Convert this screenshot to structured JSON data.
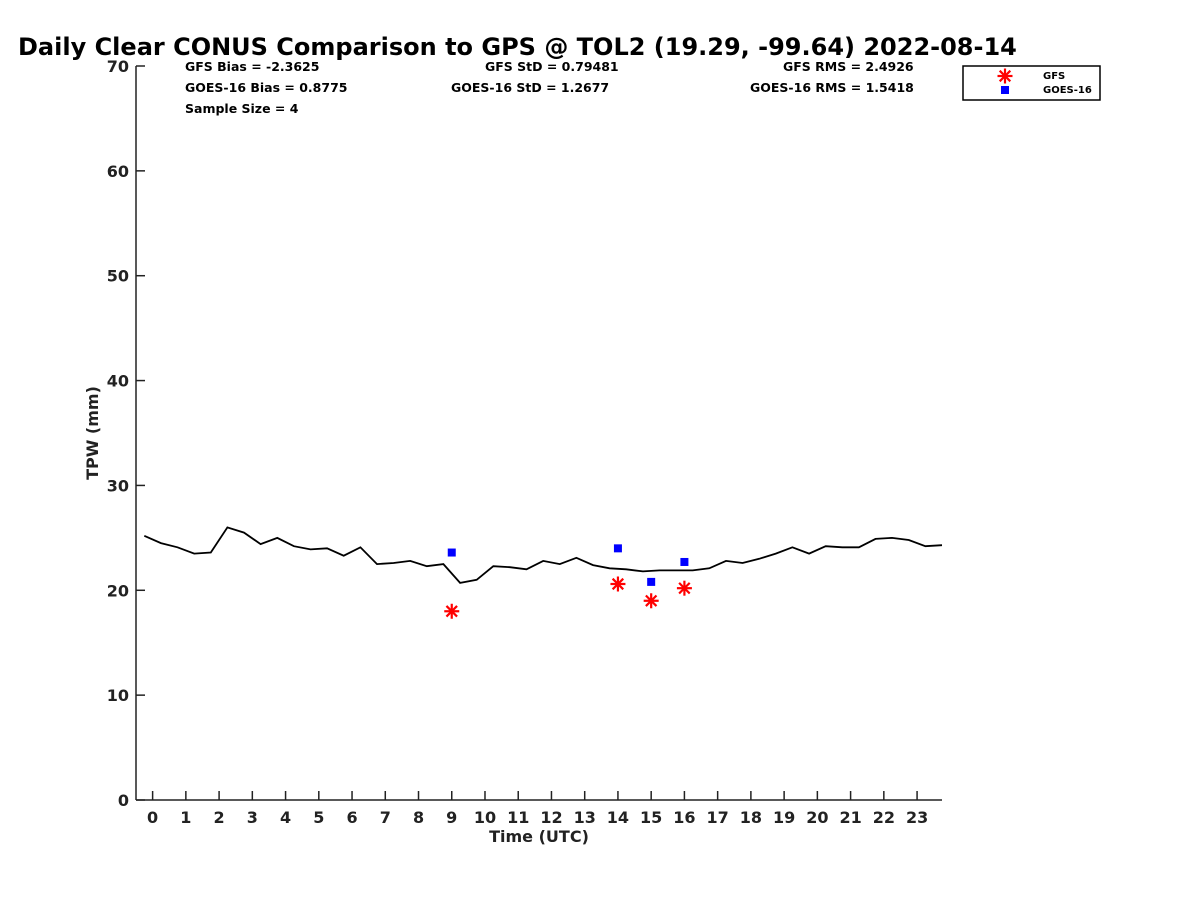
{
  "chart_data": {
    "type": "scatter",
    "title": "Daily Clear CONUS Comparison to GPS @ TOL2 (19.29, -99.64) 2022-08-14",
    "xlabel": "Time (UTC)",
    "ylabel": "TPW (mm)",
    "xlim": [
      -0.5,
      23.75
    ],
    "ylim": [
      0,
      70
    ],
    "xticks": [
      "0",
      "1",
      "2",
      "3",
      "4",
      "5",
      "6",
      "7",
      "8",
      "9",
      "10",
      "11",
      "12",
      "13",
      "14",
      "15",
      "16",
      "17",
      "18",
      "19",
      "20",
      "21",
      "22",
      "23"
    ],
    "yticks": [
      "0",
      "10",
      "20",
      "30",
      "40",
      "50",
      "60",
      "70"
    ],
    "legend_position": "top-right-outside",
    "stats": {
      "gfs_bias": "GFS Bias = -2.3625",
      "gfs_std": "GFS StD = 0.79481",
      "gfs_rms": "GFS RMS = 2.4926",
      "goes_bias": "GOES-16 Bias = 0.8775",
      "goes_std": "GOES-16 StD = 1.2677",
      "goes_rms": "GOES-16 RMS = 1.5418",
      "sample_size": "Sample Size = 4"
    },
    "gps_line": {
      "color": "#000000",
      "x": [
        -0.25,
        0.25,
        0.75,
        1.25,
        1.75,
        2.25,
        2.75,
        3.25,
        3.75,
        4.25,
        4.75,
        5.25,
        5.75,
        6.25,
        6.75,
        7.25,
        7.75,
        8.25,
        8.75,
        9.25,
        9.75,
        10.25,
        10.75,
        11.25,
        11.75,
        12.25,
        12.75,
        13.25,
        13.75,
        14.25,
        14.75,
        15.25,
        15.75,
        16.25,
        16.75,
        17.25,
        17.75,
        18.25,
        18.75,
        19.25,
        19.75,
        20.25,
        20.75,
        21.25,
        21.75,
        22.25,
        22.75,
        23.25,
        23.75
      ],
      "y": [
        25.2,
        24.5,
        24.1,
        23.5,
        23.6,
        26.0,
        25.5,
        24.4,
        25.0,
        24.2,
        23.9,
        24.0,
        23.3,
        24.1,
        22.5,
        22.6,
        22.8,
        22.3,
        22.5,
        20.7,
        21.0,
        22.3,
        22.2,
        22.0,
        22.8,
        22.5,
        23.1,
        22.4,
        22.1,
        22.0,
        21.8,
        21.9,
        21.9,
        21.9,
        22.1,
        22.8,
        22.6,
        23.0,
        23.5,
        24.1,
        23.5,
        24.2,
        24.1,
        24.1,
        24.9,
        25.0,
        24.8,
        24.2,
        24.3
      ]
    },
    "series": [
      {
        "name": "GFS",
        "marker": "asterisk",
        "color": "#ff0000",
        "x": [
          9,
          14,
          15,
          16
        ],
        "y": [
          18.0,
          20.6,
          19.0,
          20.2
        ]
      },
      {
        "name": "GOES-16",
        "marker": "square",
        "color": "#0000ff",
        "x": [
          9,
          14,
          15,
          16
        ],
        "y": [
          23.6,
          24.0,
          20.8,
          22.7
        ]
      }
    ]
  }
}
